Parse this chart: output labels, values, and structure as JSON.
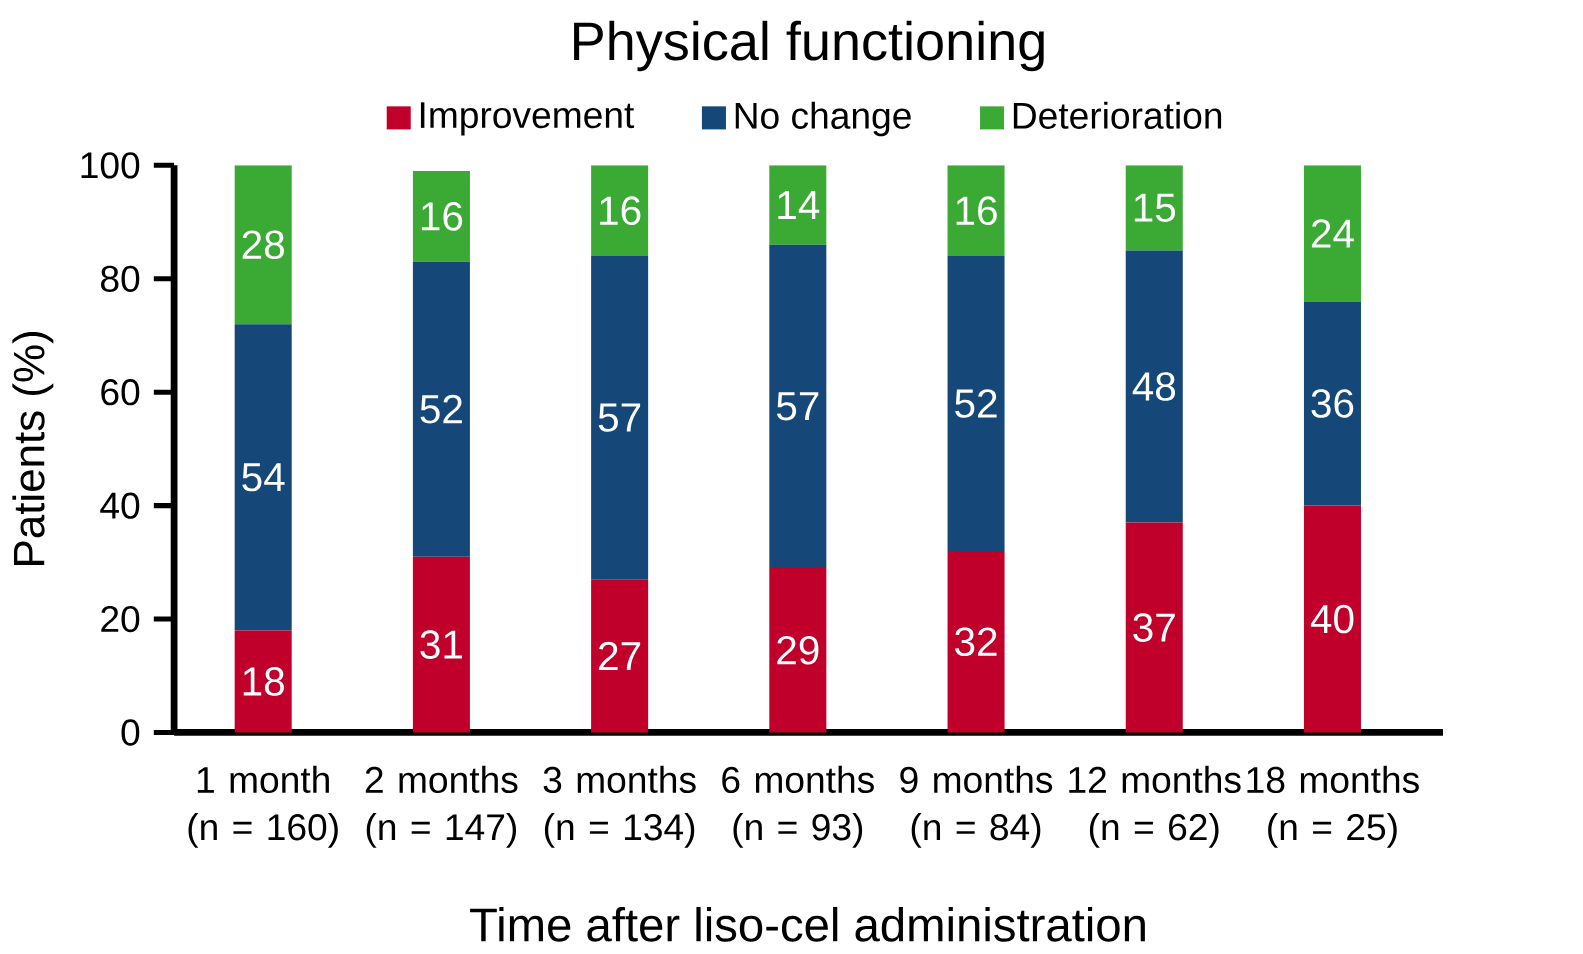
{
  "chart_data": {
    "type": "bar",
    "stacked": true,
    "title": "Physical functioning",
    "xlabel": "Time after liso-cel administration",
    "ylabel": "Patients (%)",
    "categories": [
      "1 month (n = 160)",
      "2 months (n = 147)",
      "3 months (n = 134)",
      "6 months (n = 93)",
      "9 months (n = 84)",
      "12 months (n = 62)",
      "18 months (n = 25)"
    ],
    "series": [
      {
        "name": "Improvement",
        "color": "#c0002a",
        "values": [
          18,
          31,
          27,
          29,
          32,
          37,
          40
        ]
      },
      {
        "name": "No change",
        "color": "#154878",
        "values": [
          54,
          52,
          57,
          57,
          52,
          48,
          36
        ]
      },
      {
        "name": "Deterioration",
        "color": "#3aaa35",
        "values": [
          28,
          16,
          16,
          14,
          16,
          15,
          24
        ]
      }
    ],
    "ylim": [
      0,
      100
    ],
    "yticks": [
      0,
      20,
      40,
      60,
      80,
      100
    ],
    "data_labels": true,
    "legend": "top",
    "grid": false
  }
}
